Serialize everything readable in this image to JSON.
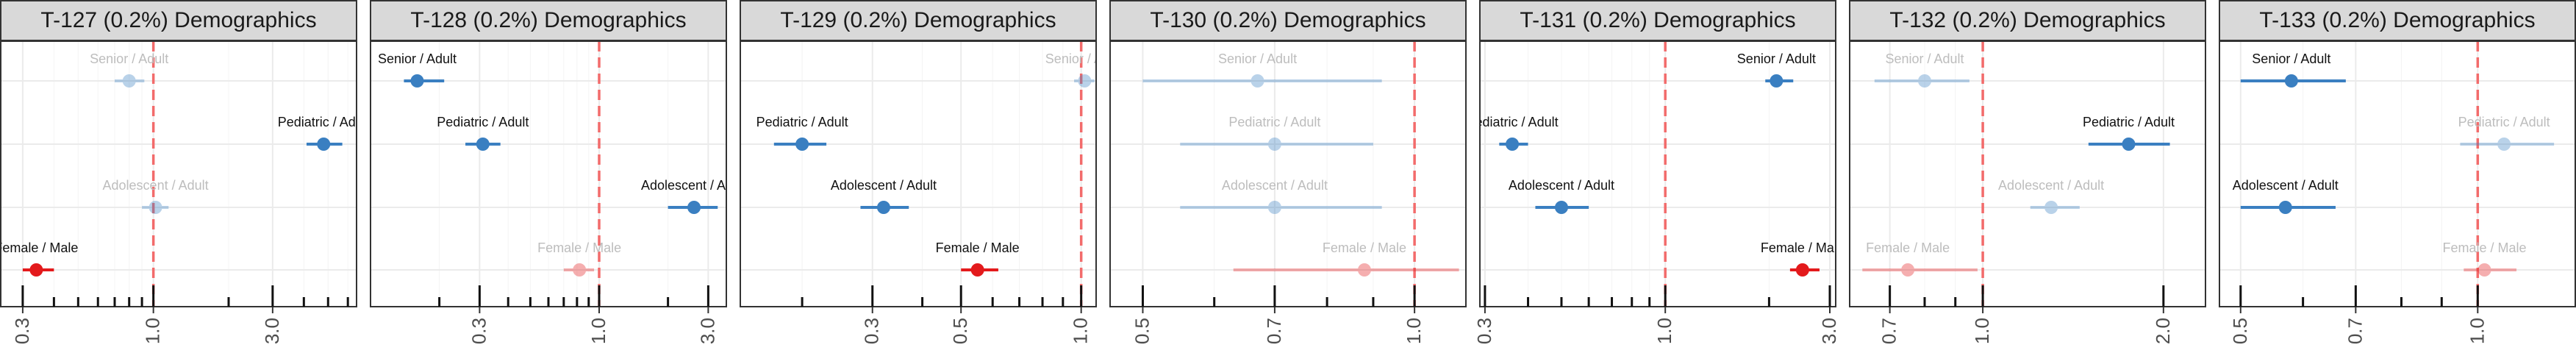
{
  "chart_data": [
    {
      "type": "forest",
      "title": "T-127 (0.2%) Demographics",
      "x_scale": "log",
      "xlim": [
        0.245,
        6.5
      ],
      "xticks": [
        0.3,
        1.0,
        3.0
      ],
      "xtick_labels": [
        "0.3",
        "1.0",
        "3.0"
      ],
      "reference_line": 1.0,
      "rows": [
        {
          "label": "Senior / Adult",
          "estimate": 0.8,
          "ci": [
            0.7,
            0.92
          ],
          "color": "#3a7fc1",
          "faded": true
        },
        {
          "label": "Pediatric / Adult",
          "estimate": 4.8,
          "ci": [
            4.1,
            5.7
          ],
          "color": "#3a7fc1",
          "faded": false
        },
        {
          "label": "Adolescent / Adult",
          "estimate": 1.02,
          "ci": [
            0.9,
            1.15
          ],
          "color": "#3a7fc1",
          "faded": true
        },
        {
          "label": "Female / Male",
          "estimate": 0.34,
          "ci": [
            0.3,
            0.4
          ],
          "color": "#e31a1c",
          "faded": false
        }
      ]
    },
    {
      "type": "forest",
      "title": "T-128 (0.2%) Demographics",
      "x_scale": "log",
      "xlim": [
        0.1,
        3.6
      ],
      "xticks": [
        0.3,
        1.0,
        3.0
      ],
      "xtick_labels": [
        "0.3",
        "1.0",
        "3.0"
      ],
      "reference_line": 1.0,
      "rows": [
        {
          "label": "Senior / Adult",
          "estimate": 0.16,
          "ci": [
            0.14,
            0.21
          ],
          "color": "#3a7fc1",
          "faded": false
        },
        {
          "label": "Pediatric / Adult",
          "estimate": 0.31,
          "ci": [
            0.26,
            0.37
          ],
          "color": "#3a7fc1",
          "faded": false
        },
        {
          "label": "Adolescent / Adult",
          "estimate": 2.6,
          "ci": [
            2.0,
            3.3
          ],
          "color": "#3a7fc1",
          "faded": false
        },
        {
          "label": "Female / Male",
          "estimate": 0.82,
          "ci": [
            0.7,
            0.95
          ],
          "color": "#e31a1c",
          "faded": true
        }
      ]
    },
    {
      "type": "forest",
      "title": "T-129 (0.2%) Demographics",
      "x_scale": "log",
      "xlim": [
        0.14,
        1.09
      ],
      "xticks": [
        0.3,
        0.5,
        1.0
      ],
      "xtick_labels": [
        "0.3",
        "0.5",
        "1.0"
      ],
      "reference_line": 1.0,
      "rows": [
        {
          "label": "Senior / Adult",
          "estimate": 1.02,
          "ci": [
            0.96,
            1.08
          ],
          "color": "#3a7fc1",
          "faded": true
        },
        {
          "label": "Pediatric / Adult",
          "estimate": 0.2,
          "ci": [
            0.17,
            0.23
          ],
          "color": "#3a7fc1",
          "faded": false
        },
        {
          "label": "Adolescent / Adult",
          "estimate": 0.32,
          "ci": [
            0.28,
            0.37
          ],
          "color": "#3a7fc1",
          "faded": false
        },
        {
          "label": "Female / Male",
          "estimate": 0.55,
          "ci": [
            0.5,
            0.62
          ],
          "color": "#e31a1c",
          "faded": false
        }
      ]
    },
    {
      "type": "forest",
      "title": "T-130 (0.2%) Demographics",
      "x_scale": "log",
      "xlim": [
        0.46,
        1.14
      ],
      "xticks": [
        0.5,
        0.7,
        1.0
      ],
      "xtick_labels": [
        "0.5",
        "0.7",
        "1.0"
      ],
      "reference_line": 1.0,
      "rows": [
        {
          "label": "Senior / Adult",
          "estimate": 0.67,
          "ci": [
            0.5,
            0.92
          ],
          "color": "#3a7fc1",
          "faded": true
        },
        {
          "label": "Pediatric / Adult",
          "estimate": 0.7,
          "ci": [
            0.55,
            0.9
          ],
          "color": "#3a7fc1",
          "faded": true
        },
        {
          "label": "Adolescent / Adult",
          "estimate": 0.7,
          "ci": [
            0.55,
            0.92
          ],
          "color": "#3a7fc1",
          "faded": true
        },
        {
          "label": "Female / Male",
          "estimate": 0.88,
          "ci": [
            0.63,
            1.12
          ],
          "color": "#e31a1c",
          "faded": true
        }
      ]
    },
    {
      "type": "forest",
      "title": "T-131 (0.2%) Demographics",
      "x_scale": "log",
      "xlim": [
        0.29,
        3.12
      ],
      "xticks": [
        0.3,
        1.0,
        3.0
      ],
      "xtick_labels": [
        "0.3",
        "1.0",
        "3.0"
      ],
      "reference_line": 1.0,
      "rows": [
        {
          "label": "Senior / Adult",
          "estimate": 2.1,
          "ci": [
            1.95,
            2.35
          ],
          "color": "#3a7fc1",
          "faded": false
        },
        {
          "label": "Pediatric / Adult",
          "estimate": 0.36,
          "ci": [
            0.33,
            0.4
          ],
          "color": "#3a7fc1",
          "faded": false
        },
        {
          "label": "Adolescent / Adult",
          "estimate": 0.5,
          "ci": [
            0.42,
            0.6
          ],
          "color": "#3a7fc1",
          "faded": false
        },
        {
          "label": "Female / Male",
          "estimate": 2.5,
          "ci": [
            2.3,
            2.8
          ],
          "color": "#e31a1c",
          "faded": false
        }
      ]
    },
    {
      "type": "forest",
      "title": "T-132 (0.2%) Demographics",
      "x_scale": "log",
      "xlim": [
        0.6,
        2.35
      ],
      "xticks": [
        0.7,
        1.0,
        2.0
      ],
      "xtick_labels": [
        "0.7",
        "1.0",
        "2.0"
      ],
      "reference_line": 1.0,
      "rows": [
        {
          "label": "Senior / Adult",
          "estimate": 0.8,
          "ci": [
            0.66,
            0.95
          ],
          "color": "#3a7fc1",
          "faded": true
        },
        {
          "label": "Pediatric / Adult",
          "estimate": 1.75,
          "ci": [
            1.5,
            2.05
          ],
          "color": "#3a7fc1",
          "faded": false
        },
        {
          "label": "Adolescent / Adult",
          "estimate": 1.3,
          "ci": [
            1.2,
            1.45
          ],
          "color": "#3a7fc1",
          "faded": true
        },
        {
          "label": "Female / Male",
          "estimate": 0.75,
          "ci": [
            0.63,
            0.98
          ],
          "color": "#e31a1c",
          "faded": true
        }
      ]
    },
    {
      "type": "forest",
      "title": "T-133 (0.2%) Demographics",
      "x_scale": "log",
      "xlim": [
        0.47,
        1.33
      ],
      "xticks": [
        0.5,
        0.7,
        1.0
      ],
      "xtick_labels": [
        "0.5",
        "0.7",
        "1.0"
      ],
      "reference_line": 1.0,
      "rows": [
        {
          "label": "Senior / Adult",
          "estimate": 0.58,
          "ci": [
            0.5,
            0.68
          ],
          "color": "#3a7fc1",
          "faded": false
        },
        {
          "label": "Pediatric / Adult",
          "estimate": 1.08,
          "ci": [
            0.95,
            1.25
          ],
          "color": "#3a7fc1",
          "faded": true
        },
        {
          "label": "Adolescent / Adult",
          "estimate": 0.57,
          "ci": [
            0.5,
            0.66
          ],
          "color": "#3a7fc1",
          "faded": false
        },
        {
          "label": "Female / Male",
          "estimate": 1.02,
          "ci": [
            0.96,
            1.12
          ],
          "color": "#e31a1c",
          "faded": true
        }
      ]
    }
  ]
}
